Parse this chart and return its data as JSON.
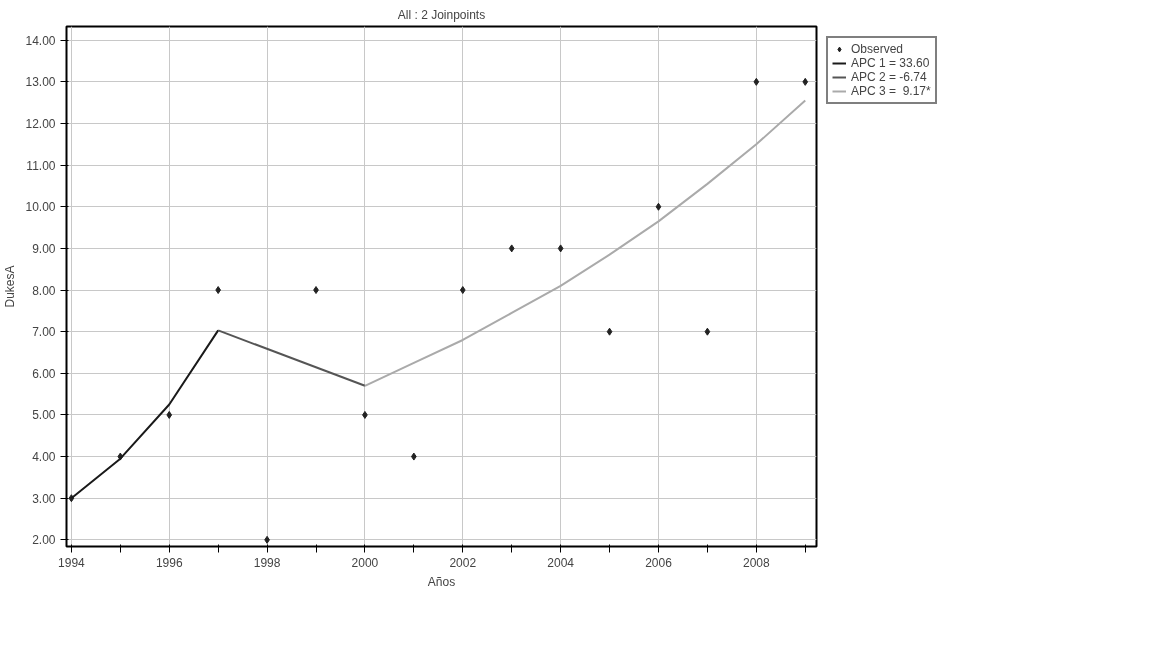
{
  "chart_data": {
    "type": "scatter",
    "title": "All : 2 Joinpoints",
    "xlabel": "Años",
    "ylabel": "DukesA",
    "xlim": [
      1993.9,
      2009.23
    ],
    "ylim": [
      1.84,
      14.33
    ],
    "xticks": [
      1994,
      {
        "value": 1995,
        "label": null
      },
      1996,
      {
        "value": 1997,
        "label": null
      },
      1998,
      {
        "value": 1999,
        "label": null
      },
      2000,
      {
        "value": 2001,
        "label": null
      },
      2002,
      {
        "value": 2003,
        "label": null
      },
      2004,
      {
        "value": 2005,
        "label": null
      },
      2006,
      {
        "value": 2007,
        "label": null
      },
      2008,
      {
        "value": 2009,
        "label": null
      }
    ],
    "yticks": [
      {
        "value": 2,
        "label": "2.00"
      },
      {
        "value": 3,
        "label": "3.00"
      },
      {
        "value": 4,
        "label": "4.00"
      },
      {
        "value": 5,
        "label": "5.00"
      },
      {
        "value": 6,
        "label": "6.00"
      },
      {
        "value": 7,
        "label": "7.00"
      },
      {
        "value": 8,
        "label": "8.00"
      },
      {
        "value": 9,
        "label": "9.00"
      },
      {
        "value": 10,
        "label": "10.00"
      },
      {
        "value": 11,
        "label": "11.00"
      },
      {
        "value": 12,
        "label": "12.00"
      },
      {
        "value": 13,
        "label": "13.00"
      },
      {
        "value": 14,
        "label": "14.00"
      }
    ],
    "grid": true,
    "legend": "top right",
    "series": [
      {
        "name": "Observed",
        "marker": "diamond",
        "color": "#222222",
        "x": [
          1994,
          1995,
          1996,
          1997,
          1998,
          1999,
          2000,
          2001,
          2002,
          2003,
          2004,
          2005,
          2006,
          2007,
          2008,
          2009
        ],
        "values": [
          3,
          4,
          5,
          8,
          2,
          8,
          5,
          4,
          8,
          9,
          9,
          7,
          10,
          7,
          13,
          13
        ]
      },
      {
        "name": "APC 1 = 33.60",
        "type": "line",
        "color": "#1a1a1a",
        "x": [
          1994,
          1995,
          1996,
          1997
        ],
        "values": [
          3.0,
          3.95,
          5.25,
          7.03
        ]
      },
      {
        "name": "APC 2 = -6.74",
        "type": "line",
        "color": "#555555",
        "x": [
          1997,
          2000
        ],
        "values": [
          7.03,
          5.7
        ]
      },
      {
        "name": "APC 3 =  9.17*",
        "type": "line",
        "color": "#aaaaaa",
        "x": [
          2000,
          2001,
          2002,
          2003,
          2004,
          2005,
          2006,
          2007,
          2008,
          2009
        ],
        "values": [
          5.7,
          6.25,
          6.8,
          7.45,
          8.1,
          8.85,
          9.65,
          10.55,
          11.5,
          12.55
        ]
      }
    ]
  }
}
